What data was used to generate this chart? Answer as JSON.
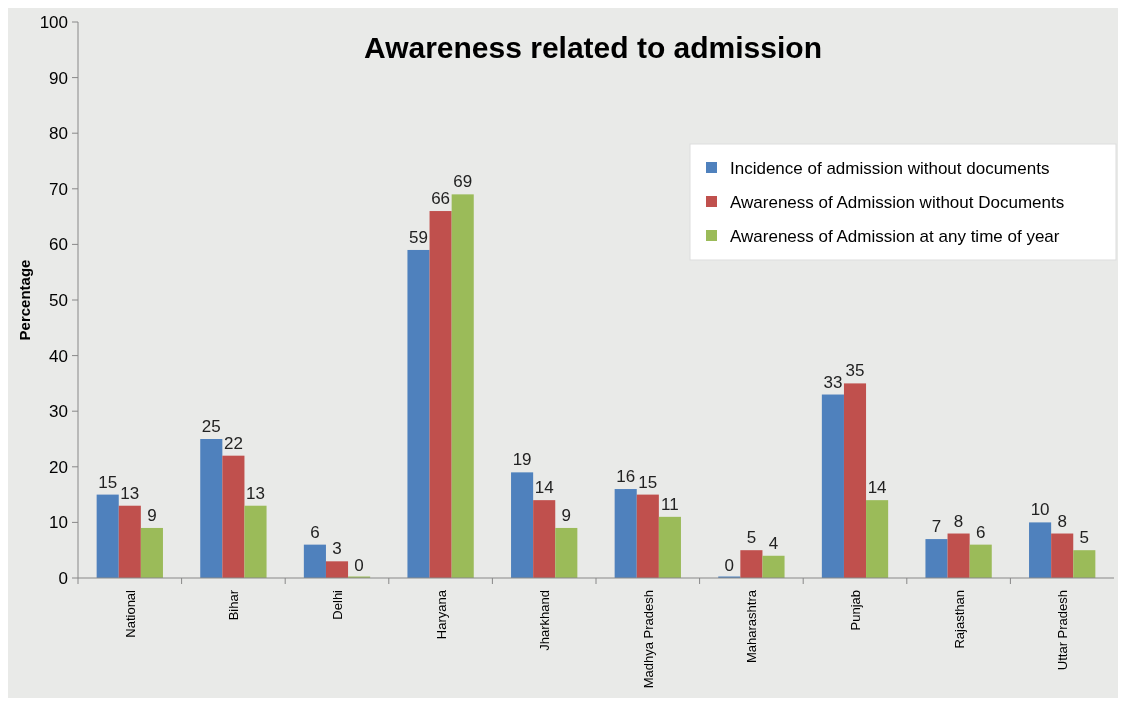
{
  "chart_data": {
    "type": "bar",
    "title": "Awareness related to admission",
    "ylabel": "Percentage",
    "categories": [
      "National",
      "Bihar",
      "Delhi",
      "Haryana",
      "Jharkhand",
      "Madhya Pradesh",
      "Maharashtra",
      "Punjab",
      "Rajasthan",
      "Uttar Pradesh"
    ],
    "series": [
      {
        "name": "Incidence of admission without documents",
        "color": "#4f81bd",
        "values": [
          15,
          25,
          6,
          59,
          19,
          16,
          0,
          33,
          7,
          10
        ]
      },
      {
        "name": "Awareness of Admission  without Documents",
        "color": "#c0504d",
        "values": [
          13,
          22,
          3,
          66,
          14,
          15,
          5,
          35,
          8,
          8
        ]
      },
      {
        "name": "Awareness of Admission at any time of year",
        "color": "#9bbb59",
        "values": [
          9,
          13,
          0,
          69,
          9,
          11,
          4,
          14,
          6,
          5
        ]
      }
    ],
    "ylim": [
      0,
      100
    ],
    "yticks": [
      0,
      10,
      20,
      30,
      40,
      50,
      60,
      70,
      80,
      90,
      100
    ],
    "grid": false,
    "legend": "top right",
    "data_labels": true
  }
}
